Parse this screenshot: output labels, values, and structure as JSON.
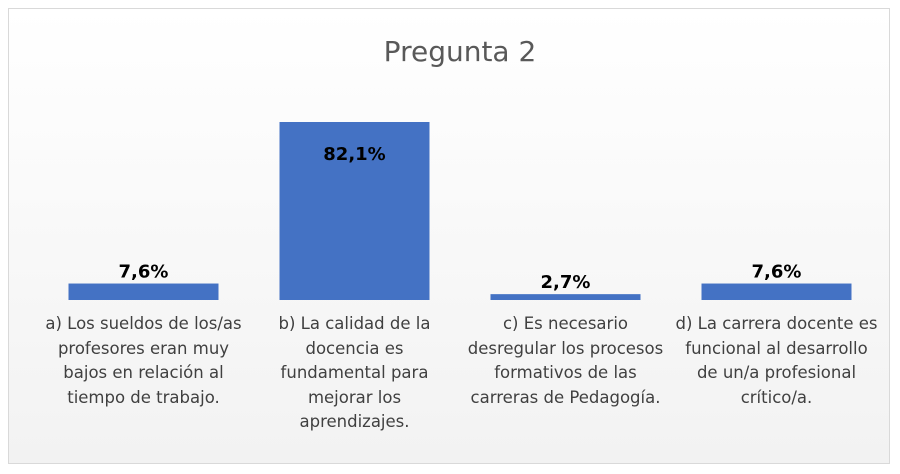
{
  "chart_data": {
    "type": "bar",
    "title": "Pregunta 2",
    "categories": [
      "a) Los sueldos de los/as profesores eran muy bajos en relación al tiempo de trabajo.",
      "b) La calidad de la docencia es fundamental para mejorar los aprendizajes.",
      "c) Es necesario desregular los procesos formativos de las carreras de Pedagogía.",
      "d) La carrera docente es funcional al desarrollo de un/a profesional crítico/a."
    ],
    "values": [
      7.6,
      82.1,
      2.7,
      7.6
    ],
    "value_labels": [
      "7,6%",
      "82,1%",
      "2,7%",
      "7,6%"
    ],
    "color": "#4472c4"
  }
}
